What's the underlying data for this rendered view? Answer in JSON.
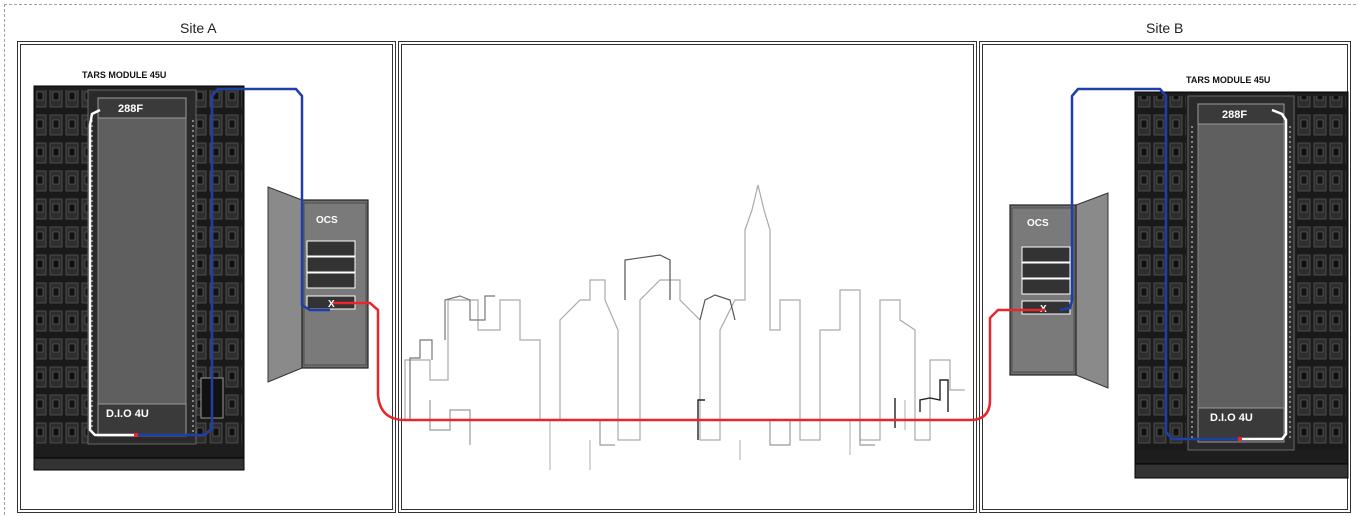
{
  "sites": {
    "a": {
      "title": "Site A"
    },
    "b": {
      "title": "Site B"
    }
  },
  "racks": {
    "a": {
      "title": "TARS MODULE 45U",
      "top_panel": "288F",
      "bottom_panel": "D.I.O 4U"
    },
    "b": {
      "title": "TARS MODULE 45U",
      "top_panel": "288F",
      "bottom_panel": "D.I.O 4U"
    }
  },
  "ocs": {
    "a": {
      "label": "OCS",
      "port_mark": "X"
    },
    "b": {
      "label": "OCS",
      "port_mark": "X"
    }
  },
  "colors": {
    "link_red": "#e8262b",
    "fiber_blue": "#1f3fa8",
    "patch_white": "#ffffff",
    "rack_dark": "#1d1d1d",
    "cabinet_gray": "#8a8a8a"
  },
  "icons": {
    "city": "city-skyline-icon"
  }
}
